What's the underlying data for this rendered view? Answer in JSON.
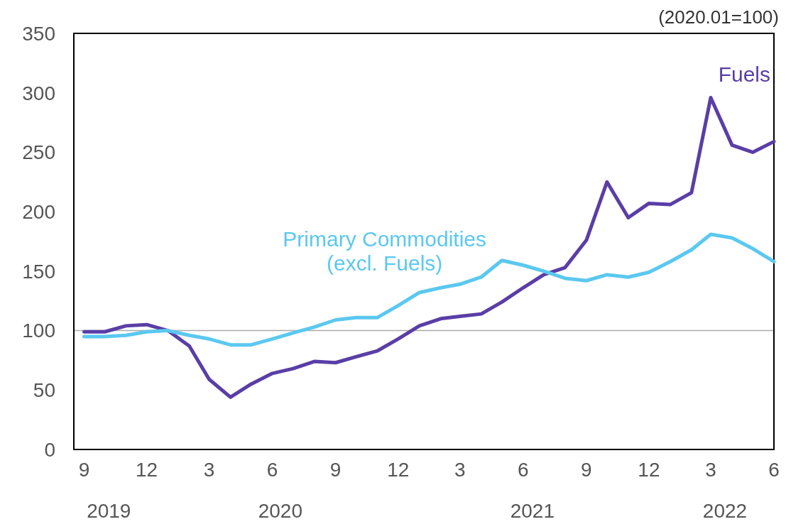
{
  "chart_data": {
    "type": "line",
    "x": [
      "2019-09",
      "2019-10",
      "2019-11",
      "2019-12",
      "2020-01",
      "2020-02",
      "2020-03",
      "2020-04",
      "2020-05",
      "2020-06",
      "2020-07",
      "2020-08",
      "2020-09",
      "2020-10",
      "2020-11",
      "2020-12",
      "2021-01",
      "2021-02",
      "2021-03",
      "2021-04",
      "2021-05",
      "2021-06",
      "2021-07",
      "2021-08",
      "2021-09",
      "2021-10",
      "2021-11",
      "2021-12",
      "2022-01",
      "2022-02",
      "2022-03",
      "2022-04",
      "2022-05",
      "2022-06"
    ],
    "series": [
      {
        "name": "Fuels",
        "color": "#5a3ea6",
        "values": [
          99,
          99,
          104,
          105,
          100,
          87,
          59,
          44,
          55,
          64,
          68,
          74,
          73,
          78,
          83,
          93,
          104,
          110,
          112,
          114,
          124,
          136,
          147,
          153,
          176,
          225,
          195,
          207,
          206,
          216,
          296,
          256,
          250,
          259
        ]
      },
      {
        "name": "Primary Commodities\n(excl. Fuels)",
        "color": "#5bc8f0",
        "values": [
          95,
          95,
          96,
          99,
          100,
          96,
          93,
          88,
          88,
          93,
          98,
          103,
          109,
          111,
          111,
          121,
          132,
          136,
          139,
          145,
          159,
          155,
          150,
          144,
          142,
          147,
          145,
          149,
          158,
          168,
          181,
          178,
          169,
          158
        ]
      }
    ],
    "xlim": [
      "2019-08-17",
      "2022-06-01"
    ],
    "xticks": [
      {
        "value": "2019-09",
        "label": "9"
      },
      {
        "value": "2019-12",
        "label": "12"
      },
      {
        "value": "2020-03",
        "label": "3"
      },
      {
        "value": "2020-06",
        "label": "6"
      },
      {
        "value": "2020-09",
        "label": "9"
      },
      {
        "value": "2020-12",
        "label": "12"
      },
      {
        "value": "2021-03",
        "label": "3"
      },
      {
        "value": "2021-06",
        "label": "6"
      },
      {
        "value": "2021-09",
        "label": "9"
      },
      {
        "value": "2021-12",
        "label": "12"
      },
      {
        "value": "2022-03",
        "label": "3"
      },
      {
        "value": "2022-06",
        "label": "6"
      }
    ],
    "ylim": [
      0,
      350
    ],
    "yticks": [
      0,
      50,
      100,
      150,
      200,
      250,
      300,
      350
    ],
    "ref_lines": [
      {
        "axis": "y",
        "value": 100,
        "color": "#aaaaaa"
      }
    ],
    "annotations": [
      "(2020.01=100)",
      "2019",
      "2020",
      "2021",
      "2022"
    ],
    "grid": false,
    "line_style": "solid",
    "marker": "none"
  }
}
